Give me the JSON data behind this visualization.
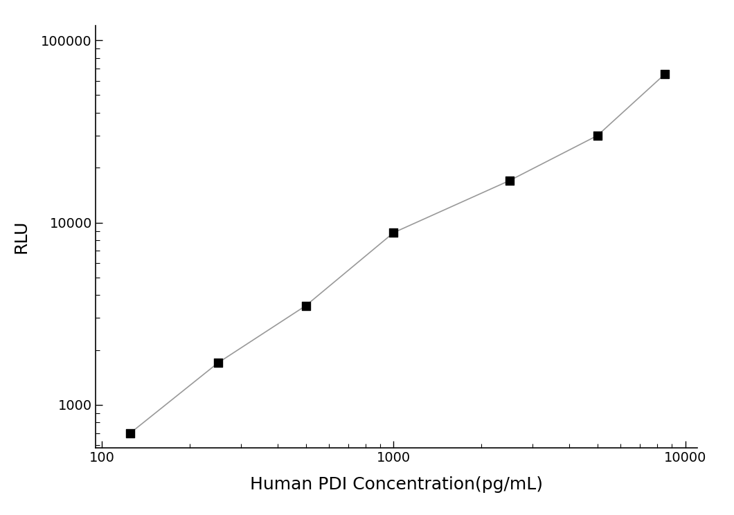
{
  "x_values": [
    125,
    250,
    500,
    1000,
    2500,
    5000,
    8500
  ],
  "y_values": [
    700,
    1700,
    3500,
    8800,
    17000,
    30000,
    65000
  ],
  "xlabel": "Human PDI Concentration(pg/mL)",
  "ylabel": "RLU",
  "xlim": [
    95,
    11000
  ],
  "ylim": [
    580,
    120000
  ],
  "line_color": "#999999",
  "marker_color": "#000000",
  "marker_style": "s",
  "marker_size": 9,
  "line_width": 1.2,
  "font_size_label": 18,
  "font_size_tick": 14,
  "background_color": "#ffffff",
  "x_ticks": [
    100,
    1000,
    10000
  ],
  "y_ticks": [
    1000,
    10000,
    100000
  ]
}
